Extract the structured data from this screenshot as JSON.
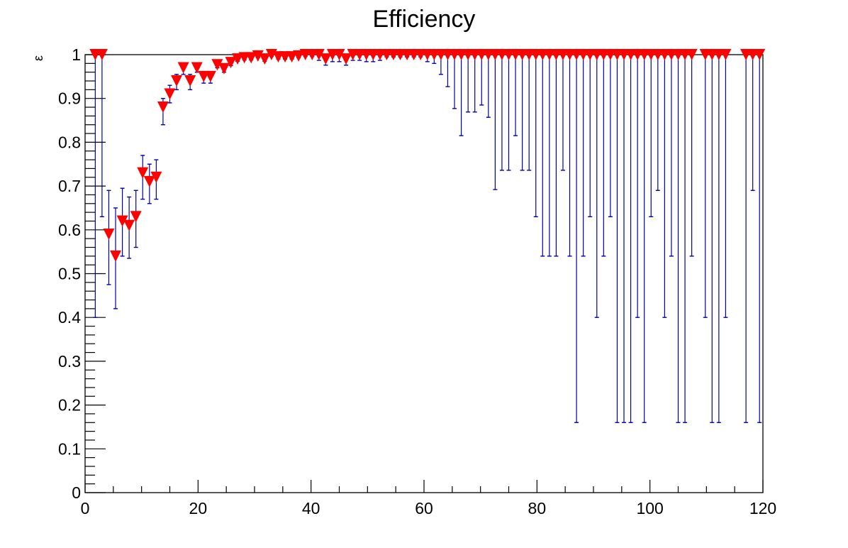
{
  "chart_data": {
    "type": "scatter",
    "title": "Efficiency",
    "xlabel": "",
    "ylabel": "ε",
    "xlim": [
      0,
      120
    ],
    "ylim": [
      0,
      1
    ],
    "x_ticks": [
      "0",
      "20",
      "40",
      "60",
      "80",
      "100",
      "120"
    ],
    "y_ticks": [
      "0",
      "0.1",
      "0.2",
      "0.3",
      "0.4",
      "0.5",
      "0.6",
      "0.7",
      "0.8",
      "0.9",
      "1"
    ],
    "grid": false,
    "marker": "inverted-triangle",
    "colors": {
      "marker": "#ff0000",
      "error_bar": "#0000aa",
      "axis": "#000000"
    },
    "point_format": [
      "x",
      "efficiency",
      "error_low",
      "error_high"
    ],
    "points": [
      [
        1.8,
        1,
        0.4,
        1
      ],
      [
        3.0,
        1,
        0.63,
        1
      ],
      [
        4.2,
        0.59,
        0.475,
        0.69
      ],
      [
        5.4,
        0.54,
        0.42,
        0.65
      ],
      [
        6.6,
        0.62,
        0.54,
        0.695
      ],
      [
        7.8,
        0.61,
        0.535,
        0.675
      ],
      [
        9.0,
        0.63,
        0.56,
        0.69
      ],
      [
        10.2,
        0.73,
        0.67,
        0.77
      ],
      [
        11.4,
        0.71,
        0.66,
        0.75
      ],
      [
        12.6,
        0.72,
        0.67,
        0.76
      ],
      [
        13.8,
        0.88,
        0.84,
        0.9
      ],
      [
        15.0,
        0.91,
        0.89,
        0.93
      ],
      [
        16.2,
        0.94,
        0.92,
        0.955
      ],
      [
        17.4,
        0.97,
        0.955,
        0.98
      ],
      [
        18.6,
        0.94,
        0.92,
        0.955
      ],
      [
        19.8,
        0.97,
        0.96,
        0.98
      ],
      [
        21.0,
        0.95,
        0.935,
        0.96
      ],
      [
        22.2,
        0.95,
        0.935,
        0.96
      ],
      [
        23.4,
        0.977,
        0.97,
        0.985
      ],
      [
        24.6,
        0.968,
        0.96,
        0.975
      ],
      [
        25.8,
        0.982,
        0.975,
        0.99
      ],
      [
        27.0,
        0.99,
        0.985,
        0.995
      ],
      [
        28.2,
        0.993,
        0.988,
        0.997
      ],
      [
        29.4,
        0.993,
        0.988,
        0.997
      ],
      [
        30.6,
        0.997,
        0.993,
        1
      ],
      [
        31.8,
        0.99,
        0.985,
        0.995
      ],
      [
        33.0,
        1,
        0.996,
        1
      ],
      [
        34.2,
        0.995,
        0.99,
        0.998
      ],
      [
        35.4,
        0.995,
        0.99,
        0.998
      ],
      [
        36.6,
        0.995,
        0.99,
        0.998
      ],
      [
        37.8,
        0.997,
        0.993,
        1
      ],
      [
        39.0,
        1,
        0.996,
        1
      ],
      [
        40.2,
        1,
        0.996,
        1
      ],
      [
        41.4,
        1,
        0.987,
        1
      ],
      [
        42.6,
        0.99,
        0.976,
        1
      ],
      [
        43.8,
        1,
        0.984,
        1
      ],
      [
        45.0,
        1,
        0.984,
        1
      ],
      [
        46.2,
        0.99,
        0.976,
        1
      ],
      [
        47.4,
        1,
        0.987,
        1
      ],
      [
        48.6,
        1,
        0.987,
        1
      ],
      [
        49.8,
        1,
        0.984,
        1
      ],
      [
        51.0,
        1,
        0.984,
        1
      ],
      [
        52.2,
        1,
        0.987,
        1
      ],
      [
        53.4,
        1,
        0.995,
        1
      ],
      [
        54.6,
        1,
        0.995,
        1
      ],
      [
        55.8,
        1,
        0.995,
        1
      ],
      [
        57.0,
        1,
        0.995,
        1
      ],
      [
        58.2,
        1,
        0.995,
        1
      ],
      [
        59.4,
        1,
        0.995,
        1
      ],
      [
        60.6,
        1,
        0.984,
        1
      ],
      [
        61.8,
        1,
        0.98,
        1
      ],
      [
        63.0,
        1,
        0.955,
        1
      ],
      [
        64.2,
        1,
        0.927,
        1
      ],
      [
        65.4,
        1,
        0.877,
        1
      ],
      [
        66.6,
        1,
        0.815,
        1
      ],
      [
        67.8,
        1,
        0.869,
        1
      ],
      [
        69.0,
        1,
        0.869,
        1
      ],
      [
        70.2,
        1,
        0.885,
        1
      ],
      [
        71.4,
        1,
        0.857,
        1
      ],
      [
        72.6,
        1,
        0.692,
        1
      ],
      [
        73.8,
        1,
        0.736,
        1
      ],
      [
        75.0,
        1,
        0.736,
        1
      ],
      [
        76.2,
        1,
        0.815,
        1
      ],
      [
        77.4,
        1,
        0.736,
        1
      ],
      [
        78.6,
        1,
        0.736,
        1
      ],
      [
        79.8,
        1,
        0.63,
        1
      ],
      [
        81.0,
        1,
        0.54,
        1
      ],
      [
        82.2,
        1,
        0.54,
        1
      ],
      [
        83.4,
        1,
        0.54,
        1
      ],
      [
        84.6,
        1,
        0.736,
        1
      ],
      [
        85.8,
        1,
        0.54,
        1
      ],
      [
        87.0,
        1,
        0.16,
        1
      ],
      [
        88.2,
        1,
        0.54,
        1
      ],
      [
        89.4,
        1,
        0.63,
        1
      ],
      [
        90.6,
        1,
        0.4,
        1
      ],
      [
        91.8,
        1,
        0.54,
        1
      ],
      [
        93.0,
        1,
        0.63,
        1
      ],
      [
        94.2,
        1,
        0.16,
        1
      ],
      [
        95.4,
        1,
        0.16,
        1
      ],
      [
        96.6,
        1,
        0.16,
        1
      ],
      [
        97.8,
        1,
        0.4,
        1
      ],
      [
        99.0,
        1,
        0.16,
        1
      ],
      [
        100.2,
        1,
        0.63,
        1
      ],
      [
        101.4,
        1,
        0.69,
        1
      ],
      [
        102.6,
        1,
        0.4,
        1
      ],
      [
        103.8,
        1,
        0.54,
        1
      ],
      [
        105.0,
        1,
        0.16,
        1
      ],
      [
        106.2,
        1,
        0.16,
        1
      ],
      [
        107.4,
        1,
        0.54,
        1
      ],
      [
        109.8,
        1,
        0.4,
        1
      ],
      [
        111.0,
        1,
        0.16,
        1
      ],
      [
        112.2,
        1,
        0.16,
        1
      ],
      [
        113.4,
        1,
        0.4,
        1
      ],
      [
        117.0,
        1,
        0.16,
        1
      ],
      [
        118.2,
        1,
        0.69,
        1
      ],
      [
        119.4,
        1,
        0.16,
        1
      ]
    ]
  }
}
